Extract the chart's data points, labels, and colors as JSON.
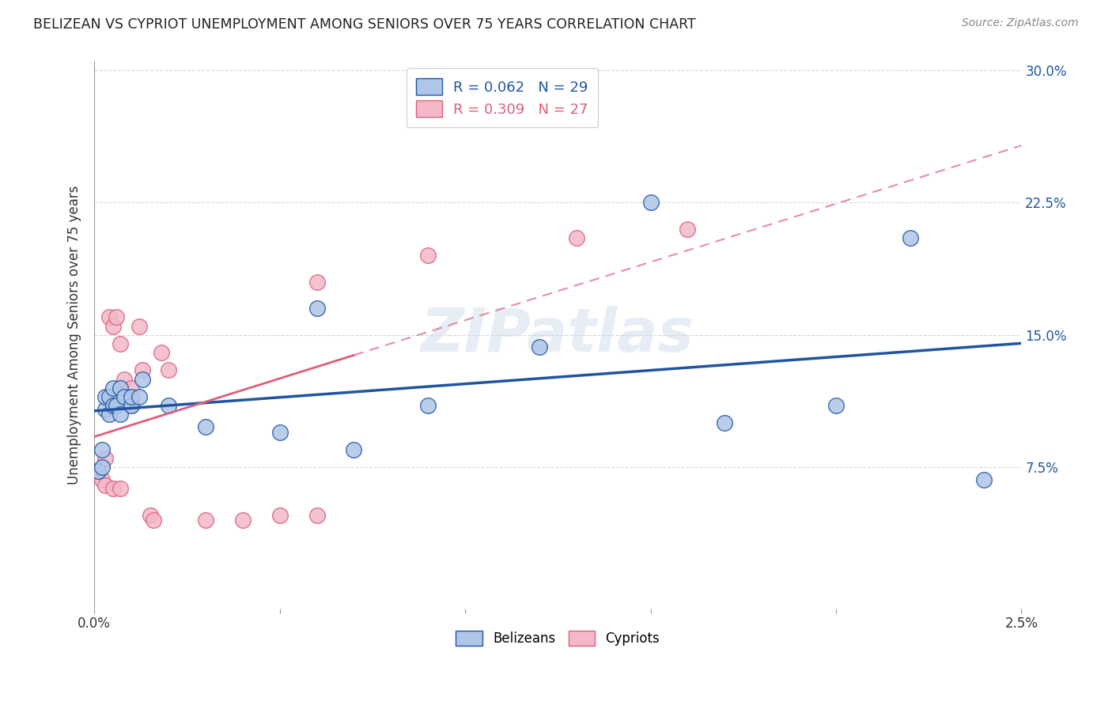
{
  "title": "BELIZEAN VS CYPRIOT UNEMPLOYMENT AMONG SENIORS OVER 75 YEARS CORRELATION CHART",
  "source": "Source: ZipAtlas.com",
  "ylabel": "Unemployment Among Seniors over 75 years",
  "belizean_r": "R = 0.062",
  "belizean_n": "N = 29",
  "cypriot_r": "R = 0.309",
  "cypriot_n": "N = 27",
  "belizean_color": "#aec6e8",
  "cypriot_color": "#f4b8c8",
  "belizean_line_color": "#2155a0",
  "cypriot_line_color": "#d9607a",
  "watermark": "ZIPatlas",
  "xlim": [
    0.0,
    0.025
  ],
  "ylim": [
    -0.005,
    0.305
  ],
  "xticks": [
    0.0,
    0.005,
    0.01,
    0.015,
    0.02,
    0.025
  ],
  "xticklabels": [
    "0.0%",
    "",
    "",
    "",
    "",
    "2.5%"
  ],
  "yticks_right": [
    0.075,
    0.15,
    0.225,
    0.3
  ],
  "yticklabels_right": [
    "7.5%",
    "15.0%",
    "22.5%",
    "30.0%"
  ],
  "grid_yticks": [
    0.075,
    0.15,
    0.225,
    0.3
  ],
  "belizean_x": [
    0.0001,
    0.0002,
    0.0002,
    0.0003,
    0.0003,
    0.0004,
    0.0004,
    0.0005,
    0.0005,
    0.0006,
    0.0007,
    0.0007,
    0.0008,
    0.001,
    0.001,
    0.0012,
    0.0013,
    0.002,
    0.003,
    0.005,
    0.006,
    0.007,
    0.009,
    0.012,
    0.015,
    0.017,
    0.02,
    0.022,
    0.024
  ],
  "belizean_y": [
    0.073,
    0.075,
    0.085,
    0.108,
    0.115,
    0.105,
    0.115,
    0.11,
    0.12,
    0.11,
    0.105,
    0.12,
    0.115,
    0.11,
    0.115,
    0.115,
    0.125,
    0.11,
    0.098,
    0.095,
    0.165,
    0.085,
    0.11,
    0.143,
    0.225,
    0.1,
    0.11,
    0.205,
    0.068
  ],
  "cypriot_x": [
    0.0001,
    0.0002,
    0.0003,
    0.0003,
    0.0004,
    0.0005,
    0.0005,
    0.0006,
    0.0007,
    0.0007,
    0.0008,
    0.001,
    0.001,
    0.0012,
    0.0013,
    0.0015,
    0.0016,
    0.0018,
    0.002,
    0.003,
    0.004,
    0.005,
    0.006,
    0.006,
    0.009,
    0.013,
    0.016
  ],
  "cypriot_y": [
    0.073,
    0.068,
    0.08,
    0.065,
    0.16,
    0.155,
    0.063,
    0.16,
    0.145,
    0.063,
    0.125,
    0.11,
    0.12,
    0.155,
    0.13,
    0.048,
    0.045,
    0.14,
    0.13,
    0.045,
    0.045,
    0.048,
    0.048,
    0.18,
    0.195,
    0.205,
    0.21
  ],
  "background_color": "#ffffff",
  "grid_color": "#cccccc",
  "marker_size": 200
}
